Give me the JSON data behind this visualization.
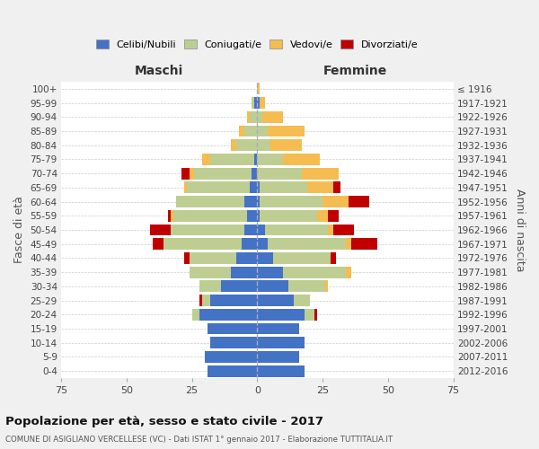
{
  "age_groups": [
    "0-4",
    "5-9",
    "10-14",
    "15-19",
    "20-24",
    "25-29",
    "30-34",
    "35-39",
    "40-44",
    "45-49",
    "50-54",
    "55-59",
    "60-64",
    "65-69",
    "70-74",
    "75-79",
    "80-84",
    "85-89",
    "90-94",
    "95-99",
    "100+"
  ],
  "birth_years": [
    "2012-2016",
    "2007-2011",
    "2002-2006",
    "1997-2001",
    "1992-1996",
    "1987-1991",
    "1982-1986",
    "1977-1981",
    "1972-1976",
    "1967-1971",
    "1962-1966",
    "1957-1961",
    "1952-1956",
    "1947-1951",
    "1942-1946",
    "1937-1941",
    "1932-1936",
    "1927-1931",
    "1922-1926",
    "1917-1921",
    "≤ 1916"
  ],
  "males": {
    "celibi": [
      19,
      20,
      18,
      19,
      22,
      18,
      14,
      10,
      8,
      6,
      5,
      4,
      5,
      3,
      2,
      1,
      0,
      0,
      0,
      1,
      0
    ],
    "coniugati": [
      0,
      0,
      0,
      0,
      3,
      3,
      8,
      16,
      18,
      30,
      28,
      28,
      26,
      24,
      22,
      17,
      8,
      5,
      3,
      1,
      0
    ],
    "vedovi": [
      0,
      0,
      0,
      0,
      0,
      0,
      0,
      0,
      0,
      0,
      0,
      1,
      0,
      1,
      2,
      3,
      2,
      2,
      1,
      0,
      0
    ],
    "divorziati": [
      0,
      0,
      0,
      0,
      0,
      1,
      0,
      0,
      2,
      4,
      8,
      1,
      0,
      0,
      3,
      0,
      0,
      0,
      0,
      0,
      0
    ]
  },
  "females": {
    "nubili": [
      18,
      16,
      18,
      16,
      18,
      14,
      12,
      10,
      6,
      4,
      3,
      1,
      1,
      1,
      0,
      0,
      0,
      0,
      0,
      1,
      0
    ],
    "coniugate": [
      0,
      0,
      0,
      0,
      4,
      6,
      14,
      24,
      22,
      30,
      24,
      22,
      24,
      18,
      17,
      10,
      5,
      4,
      2,
      0,
      0
    ],
    "vedove": [
      0,
      0,
      0,
      0,
      0,
      0,
      1,
      2,
      0,
      2,
      2,
      4,
      10,
      10,
      14,
      14,
      12,
      14,
      8,
      2,
      1
    ],
    "divorziate": [
      0,
      0,
      0,
      0,
      1,
      0,
      0,
      0,
      2,
      10,
      8,
      4,
      8,
      3,
      0,
      0,
      0,
      0,
      0,
      0,
      0
    ]
  },
  "colors": {
    "celibi": "#4472C4",
    "coniugati": "#BECE93",
    "vedovi": "#F5BC52",
    "divorziati": "#C00000"
  },
  "xlim": 75,
  "title": "Popolazione per età, sesso e stato civile - 2017",
  "subtitle": "COMUNE DI ASIGLIANO VERCELLESE (VC) - Dati ISTAT 1° gennaio 2017 - Elaborazione TUTTITALIA.IT",
  "xlabel_left": "Maschi",
  "xlabel_right": "Femmine",
  "ylabel": "Fasce di età",
  "ylabel_right": "Anni di nascita",
  "legend_labels": [
    "Celibi/Nubili",
    "Coniugati/e",
    "Vedovi/e",
    "Divorziati/e"
  ],
  "bg_color": "#f0f0f0",
  "plot_bg": "#ffffff"
}
